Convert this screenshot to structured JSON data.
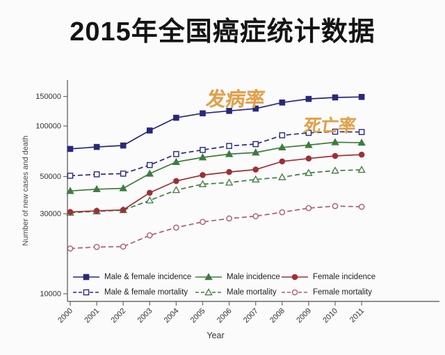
{
  "title": "2015年全国癌症统计数据",
  "annotations": {
    "incidence": "发病率",
    "mortality": "死亡率"
  },
  "colors": {
    "navy": "#28287d",
    "green": "#3e7c3e",
    "dark_red": "#9e2f36",
    "rose": "#b05a6e",
    "orange_annotation": "#dfa049",
    "axis": "#6a6a6a",
    "tick_text": "#333333",
    "background": "#fbfbfb"
  },
  "chart_data": {
    "type": "line",
    "title": "2015年全国癌症统计数据",
    "xlabel": "Year",
    "ylabel": "Number of new cases and death",
    "x": [
      2000,
      2001,
      2002,
      2003,
      2004,
      2005,
      2006,
      2007,
      2008,
      2009,
      2010,
      2011
    ],
    "yscale": "log",
    "yticks": [
      10000,
      30000,
      50000,
      100000,
      150000
    ],
    "ylim": [
      9000,
      175000
    ],
    "grid": false,
    "legend_position": "bottom-inside",
    "series": [
      {
        "name": "Male & female incidence",
        "color": "#28287d",
        "dashed": false,
        "marker": "square-filled",
        "values": [
          73000,
          75000,
          76500,
          94000,
          112000,
          119000,
          123000,
          127000,
          138000,
          145000,
          148000,
          149000
        ]
      },
      {
        "name": "Male & female mortality",
        "color": "#28287d",
        "dashed": true,
        "marker": "square-open",
        "values": [
          50500,
          51500,
          52000,
          58500,
          68000,
          72000,
          76000,
          78000,
          88000,
          91000,
          92500,
          92000
        ]
      },
      {
        "name": "Male incidence",
        "color": "#3e7c3e",
        "dashed": false,
        "marker": "triangle-filled",
        "values": [
          41000,
          42000,
          42500,
          52000,
          61000,
          65000,
          68000,
          69500,
          74500,
          77000,
          80000,
          79500
        ]
      },
      {
        "name": "Male mortality",
        "color": "#3e7c3e",
        "dashed": true,
        "marker": "triangle-open",
        "values": [
          30400,
          31000,
          31500,
          36000,
          41500,
          45000,
          46000,
          48000,
          49500,
          52500,
          54200,
          54800
        ]
      },
      {
        "name": "Female incidence",
        "color": "#9e2f36",
        "dashed": false,
        "marker": "circle-filled",
        "values": [
          30700,
          31200,
          31600,
          40000,
          47000,
          51000,
          53200,
          55000,
          61500,
          64000,
          66300,
          67500
        ]
      },
      {
        "name": "Female mortality",
        "color": "#b05a6e",
        "dashed": true,
        "marker": "circle-open",
        "values": [
          18600,
          19000,
          19100,
          22300,
          24800,
          26800,
          28100,
          29000,
          30600,
          32400,
          33300,
          33000
        ]
      }
    ]
  }
}
